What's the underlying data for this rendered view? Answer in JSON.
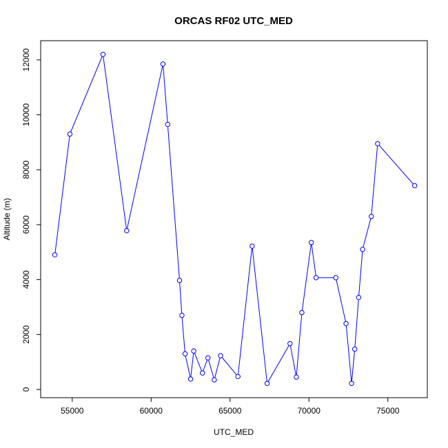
{
  "chart_data": {
    "type": "line",
    "title": "ORCAS RF02 UTC_MED",
    "xlabel": "UTC_MED",
    "ylabel": "Altitude (m)",
    "xlim": [
      53000,
      77500
    ],
    "ylim": [
      -300,
      12700
    ],
    "x_ticks": [
      55000,
      60000,
      65000,
      70000,
      75000
    ],
    "y_ticks": [
      0,
      2000,
      4000,
      6000,
      8000,
      10000,
      12000
    ],
    "markers": "open-circle",
    "grid": false,
    "legend": "none",
    "series": [
      {
        "color": "#0000ff",
        "points": [
          [
            53900,
            4900
          ],
          [
            54850,
            9300
          ],
          [
            56950,
            12200
          ],
          [
            58450,
            5780
          ],
          [
            60750,
            11850
          ],
          [
            61050,
            9650
          ],
          [
            61800,
            3970
          ],
          [
            61950,
            2700
          ],
          [
            62150,
            1300
          ],
          [
            62500,
            380
          ],
          [
            62700,
            1400
          ],
          [
            63250,
            600
          ],
          [
            63600,
            1150
          ],
          [
            64000,
            350
          ],
          [
            64400,
            1230
          ],
          [
            65500,
            470
          ],
          [
            66400,
            5220
          ],
          [
            67350,
            220
          ],
          [
            68800,
            1670
          ],
          [
            69200,
            450
          ],
          [
            69550,
            2800
          ],
          [
            70150,
            5350
          ],
          [
            70450,
            4070
          ],
          [
            71700,
            4070
          ],
          [
            72350,
            2400
          ],
          [
            72700,
            220
          ],
          [
            72900,
            1470
          ],
          [
            73150,
            3350
          ],
          [
            73400,
            5100
          ],
          [
            73950,
            6300
          ],
          [
            74350,
            8950
          ],
          [
            76700,
            7420
          ]
        ]
      }
    ]
  }
}
